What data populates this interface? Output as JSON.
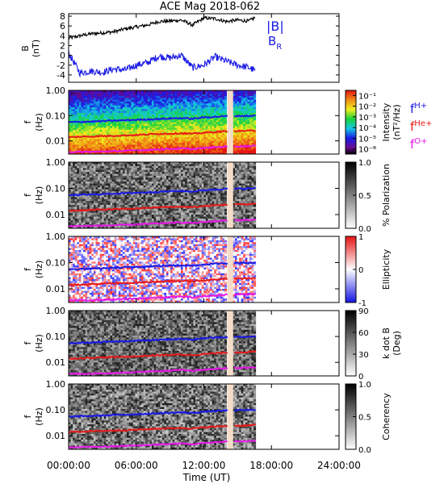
{
  "title": "ACE Mag 2018-062",
  "x_axis": {
    "label": "Time (UT)",
    "ticks": [
      "00:00:00",
      "06:00:00",
      "12:00:00",
      "18:00:00",
      "24:00:00"
    ]
  },
  "panel_b": {
    "ylabel": "B",
    "yunit": "(nT)",
    "yticks": [
      "8",
      "6",
      "4",
      "2",
      "0",
      "-2",
      "-4"
    ],
    "legend_total": "|B|",
    "legend_radial_main": "B",
    "legend_radial_sub": "R"
  },
  "freq_axis": {
    "ylabel": "f",
    "yunit": "(Hz)",
    "yticks": [
      "1.00",
      "0.10",
      "0.01"
    ]
  },
  "gyro_legend": [
    {
      "main": "f",
      "sub": "H+",
      "color": "#1a1ae6"
    },
    {
      "main": "f",
      "sub": "He+",
      "color": "#e61a1a"
    },
    {
      "main": "f",
      "sub": "O+",
      "color": "#e619e6"
    }
  ],
  "colorbars": [
    {
      "title_line1": "Intensity",
      "title_line2": "(nT²/Hz)",
      "ticks": [
        "10⁻¹",
        "10⁻²",
        "10⁻³",
        "10⁻⁴",
        "10⁻⁵",
        "10⁻⁶"
      ],
      "scale": "rainbow"
    },
    {
      "title_line1": "% Polarization",
      "title_line2": "",
      "ticks": [
        "1.0",
        "0.5",
        "0.0"
      ],
      "scale": "gray"
    },
    {
      "title_line1": "Ellipticity",
      "title_line2": "",
      "ticks": [
        "1",
        "0",
        "-1"
      ],
      "scale": "bwr"
    },
    {
      "title_line1": "k dot B",
      "title_line2": "(Deg)",
      "ticks": [
        "90",
        "60",
        "30",
        "0"
      ],
      "scale": "gray"
    },
    {
      "title_line1": "Coherency",
      "title_line2": "",
      "ticks": [
        "1.0",
        "0.5",
        "0.0"
      ],
      "scale": "gray"
    }
  ],
  "chart_data": [
    {
      "type": "line",
      "x_unit": "hours UT",
      "xlim": [
        0,
        24
      ],
      "ylim": [
        -5.5,
        8.5
      ],
      "series": [
        {
          "name": "|B|",
          "color": "#000000",
          "x": [
            0,
            1,
            2,
            3,
            4,
            5,
            6,
            7,
            8,
            9,
            10,
            11,
            12,
            13,
            14,
            15,
            16,
            16.6
          ],
          "values": [
            3.5,
            4.0,
            4.4,
            4.6,
            4.8,
            5.4,
            5.8,
            6.2,
            6.9,
            7.0,
            7.2,
            6.2,
            7.6,
            7.5,
            6.9,
            7.2,
            7.0,
            7.8
          ]
        },
        {
          "name": "B_R",
          "color": "#1a1ae6",
          "x": [
            0,
            1,
            2,
            3,
            4,
            5,
            6,
            7,
            8,
            9,
            10,
            11,
            12,
            13,
            14,
            15,
            16,
            16.6
          ],
          "values": [
            0.5,
            -3.6,
            -3.2,
            -3.5,
            -2.8,
            -3.0,
            -2.0,
            -1.5,
            -0.2,
            -0.5,
            0.0,
            -2.5,
            -2.0,
            -0.3,
            -1.2,
            -2.0,
            -2.5,
            -3.2
          ]
        }
      ]
    },
    {
      "type": "heatmap",
      "quantity": "Intensity",
      "yscale": "log",
      "ylim": [
        0.003,
        1.0
      ],
      "xlim": [
        0,
        24
      ],
      "data_extent_hours": [
        0,
        16.6
      ],
      "gap_hours": [
        14.1,
        14.6
      ],
      "gyro_frequencies": {
        "x": [
          0,
          2,
          4,
          6,
          8,
          10,
          11,
          12,
          14,
          16,
          16.6
        ],
        "fH+": [
          0.055,
          0.058,
          0.063,
          0.068,
          0.074,
          0.08,
          0.075,
          0.085,
          0.095,
          0.098,
          0.1
        ],
        "fHe+": [
          0.014,
          0.015,
          0.016,
          0.017,
          0.019,
          0.02,
          0.019,
          0.021,
          0.024,
          0.025,
          0.026
        ],
        "fO+": [
          0.0036,
          0.0037,
          0.0039,
          0.0042,
          0.0046,
          0.005,
          0.0047,
          0.0052,
          0.006,
          0.0062,
          0.0064
        ]
      }
    },
    {
      "type": "heatmap",
      "quantity": "% Polarization",
      "yscale": "log",
      "ylim": [
        0.003,
        1.0
      ],
      "clim": [
        0.0,
        1.0
      ]
    },
    {
      "type": "heatmap",
      "quantity": "Ellipticity",
      "yscale": "log",
      "ylim": [
        0.003,
        1.0
      ],
      "clim": [
        -1,
        1
      ]
    },
    {
      "type": "heatmap",
      "quantity": "k dot B",
      "yscale": "log",
      "ylim": [
        0.003,
        1.0
      ],
      "clim": [
        0,
        90
      ]
    },
    {
      "type": "heatmap",
      "quantity": "Coherency",
      "yscale": "log",
      "ylim": [
        0.003,
        1.0
      ],
      "clim": [
        0.0,
        1.0
      ]
    }
  ]
}
